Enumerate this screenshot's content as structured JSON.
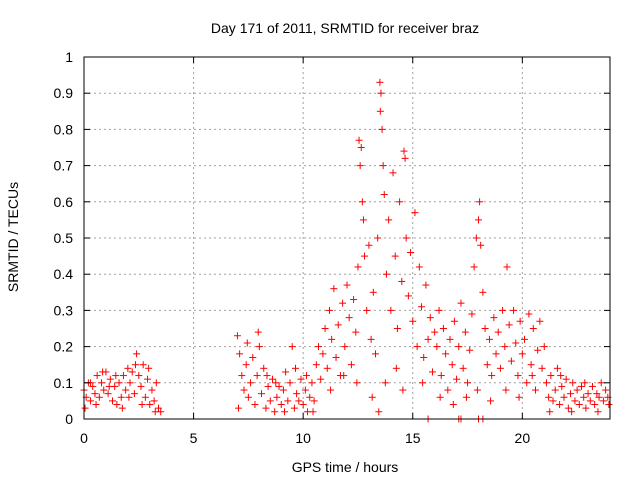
{
  "chart_data": {
    "type": "scatter",
    "title": "Day 171 of 2011, SRMTID for receiver braz",
    "xlabel": "GPS time / hours",
    "ylabel": "SRMTID / TECUs",
    "xlim": [
      0,
      24
    ],
    "ylim": [
      0,
      1
    ],
    "xticks": [
      0,
      5,
      10,
      15,
      20
    ],
    "yticks": [
      0,
      0.1,
      0.2,
      0.3,
      0.4,
      0.5,
      0.6,
      0.7,
      0.8,
      0.9,
      1
    ],
    "ytick_labels": [
      "0",
      "0.1",
      "0.2",
      "0.3",
      "0.4",
      "0.5",
      "0.6",
      "0.7",
      "0.8",
      "0.9",
      "1"
    ],
    "grid": true,
    "marker": "+",
    "color": "#ff0000",
    "points": [
      [
        0.0,
        0.08
      ],
      [
        0.1,
        0.06
      ],
      [
        0.2,
        0.1
      ],
      [
        0.3,
        0.05
      ],
      [
        0.4,
        0.09
      ],
      [
        0.5,
        0.07
      ],
      [
        0.6,
        0.12
      ],
      [
        0.7,
        0.06
      ],
      [
        0.8,
        0.1
      ],
      [
        0.9,
        0.08
      ],
      [
        1.0,
        0.13
      ],
      [
        1.1,
        0.07
      ],
      [
        1.2,
        0.11
      ],
      [
        1.3,
        0.05
      ],
      [
        1.4,
        0.09
      ],
      [
        1.5,
        0.04
      ],
      [
        1.6,
        0.1
      ],
      [
        1.7,
        0.06
      ],
      [
        1.8,
        0.12
      ],
      [
        1.9,
        0.08
      ],
      [
        2.0,
        0.14
      ],
      [
        2.1,
        0.1
      ],
      [
        2.2,
        0.13
      ],
      [
        2.3,
        0.07
      ],
      [
        2.4,
        0.18
      ],
      [
        2.5,
        0.12
      ],
      [
        2.6,
        0.09
      ],
      [
        2.7,
        0.15
      ],
      [
        2.8,
        0.06
      ],
      [
        2.9,
        0.11
      ],
      [
        3.0,
        0.04
      ],
      [
        3.1,
        0.08
      ],
      [
        3.2,
        0.05
      ],
      [
        3.3,
        0.1
      ],
      [
        3.4,
        0.03
      ],
      [
        3.5,
        0.02
      ],
      [
        0.05,
        0.03
      ],
      [
        0.3,
        0.1
      ],
      [
        0.55,
        0.04
      ],
      [
        0.85,
        0.13
      ],
      [
        1.15,
        0.09
      ],
      [
        1.45,
        0.12
      ],
      [
        1.75,
        0.03
      ],
      [
        2.05,
        0.06
      ],
      [
        2.35,
        0.15
      ],
      [
        2.65,
        0.04
      ],
      [
        2.95,
        0.14
      ],
      [
        3.25,
        0.02
      ],
      [
        7.0,
        0.23
      ],
      [
        7.1,
        0.18
      ],
      [
        7.2,
        0.12
      ],
      [
        7.3,
        0.08
      ],
      [
        7.4,
        0.15
      ],
      [
        7.5,
        0.06
      ],
      [
        7.6,
        0.1
      ],
      [
        7.7,
        0.17
      ],
      [
        7.8,
        0.04
      ],
      [
        7.9,
        0.12
      ],
      [
        8.0,
        0.2
      ],
      [
        8.1,
        0.07
      ],
      [
        8.2,
        0.14
      ],
      [
        8.3,
        0.03
      ],
      [
        8.4,
        0.09
      ],
      [
        8.5,
        0.05
      ],
      [
        8.6,
        0.11
      ],
      [
        8.7,
        0.02
      ],
      [
        8.8,
        0.06
      ],
      [
        8.9,
        0.09
      ],
      [
        9.0,
        0.04
      ],
      [
        9.1,
        0.08
      ],
      [
        9.2,
        0.13
      ],
      [
        9.3,
        0.05
      ],
      [
        9.4,
        0.1
      ],
      [
        9.5,
        0.2
      ],
      [
        9.6,
        0.03
      ],
      [
        9.7,
        0.07
      ],
      [
        9.8,
        0.05
      ],
      [
        9.9,
        0.11
      ],
      [
        10.0,
        0.04
      ],
      [
        10.1,
        0.08
      ],
      [
        10.2,
        0.02
      ],
      [
        10.3,
        0.06
      ],
      [
        10.4,
        0.1
      ],
      [
        10.5,
        0.05
      ],
      [
        7.05,
        0.03
      ],
      [
        7.45,
        0.21
      ],
      [
        7.95,
        0.24
      ],
      [
        8.35,
        0.12
      ],
      [
        8.75,
        0.1
      ],
      [
        9.15,
        0.02
      ],
      [
        9.65,
        0.14
      ],
      [
        10.15,
        0.12
      ],
      [
        10.45,
        0.02
      ],
      [
        10.6,
        0.15
      ],
      [
        10.7,
        0.2
      ],
      [
        10.8,
        0.11
      ],
      [
        10.9,
        0.18
      ],
      [
        11.0,
        0.25
      ],
      [
        11.1,
        0.14
      ],
      [
        11.2,
        0.3
      ],
      [
        11.3,
        0.22
      ],
      [
        11.4,
        0.36
      ],
      [
        11.5,
        0.17
      ],
      [
        11.6,
        0.26
      ],
      [
        11.7,
        0.12
      ],
      [
        11.8,
        0.32
      ],
      [
        11.9,
        0.2
      ],
      [
        12.0,
        0.37
      ],
      [
        12.1,
        0.28
      ],
      [
        12.2,
        0.15
      ],
      [
        12.3,
        0.33
      ],
      [
        12.4,
        0.24
      ],
      [
        12.5,
        0.42
      ],
      [
        12.55,
        0.77
      ],
      [
        12.6,
        0.7
      ],
      [
        12.65,
        0.75
      ],
      [
        12.7,
        0.6
      ],
      [
        12.75,
        0.55
      ],
      [
        12.8,
        0.45
      ],
      [
        12.9,
        0.3
      ],
      [
        13.0,
        0.48
      ],
      [
        13.1,
        0.22
      ],
      [
        13.2,
        0.35
      ],
      [
        13.3,
        0.18
      ],
      [
        13.4,
        0.5
      ],
      [
        13.5,
        0.93
      ],
      [
        13.52,
        0.85
      ],
      [
        13.55,
        0.9
      ],
      [
        13.6,
        0.8
      ],
      [
        13.65,
        0.7
      ],
      [
        13.7,
        0.62
      ],
      [
        13.8,
        0.4
      ],
      [
        13.9,
        0.55
      ],
      [
        14.0,
        0.3
      ],
      [
        14.1,
        0.68
      ],
      [
        14.2,
        0.45
      ],
      [
        14.3,
        0.25
      ],
      [
        14.4,
        0.6
      ],
      [
        14.5,
        0.38
      ],
      [
        14.6,
        0.74
      ],
      [
        14.65,
        0.72
      ],
      [
        14.7,
        0.5
      ],
      [
        14.8,
        0.34
      ],
      [
        14.9,
        0.46
      ],
      [
        15.0,
        0.27
      ],
      [
        15.1,
        0.57
      ],
      [
        15.2,
        0.2
      ],
      [
        15.3,
        0.42
      ],
      [
        15.4,
        0.31
      ],
      [
        15.5,
        0.17
      ],
      [
        15.6,
        0.37
      ],
      [
        15.7,
        0.22
      ],
      [
        15.8,
        0.28
      ],
      [
        15.9,
        0.13
      ],
      [
        16.0,
        0.24
      ],
      [
        16.1,
        0.2
      ],
      [
        16.2,
        0.3
      ],
      [
        16.3,
        0.12
      ],
      [
        16.4,
        0.25
      ],
      [
        16.5,
        0.18
      ],
      [
        16.6,
        0.08
      ],
      [
        16.7,
        0.22
      ],
      [
        16.8,
        0.15
      ],
      [
        16.9,
        0.27
      ],
      [
        17.0,
        0.11
      ],
      [
        17.1,
        0.2
      ],
      [
        17.2,
        0.32
      ],
      [
        17.3,
        0.14
      ],
      [
        17.4,
        0.24
      ],
      [
        17.5,
        0.1
      ],
      [
        17.6,
        0.19
      ],
      [
        17.7,
        0.29
      ],
      [
        17.8,
        0.42
      ],
      [
        17.9,
        0.5
      ],
      [
        18.0,
        0.55
      ],
      [
        18.05,
        0.6
      ],
      [
        18.1,
        0.48
      ],
      [
        18.2,
        0.35
      ],
      [
        18.3,
        0.25
      ],
      [
        18.4,
        0.15
      ],
      [
        18.5,
        0.22
      ],
      [
        18.6,
        0.12
      ],
      [
        18.7,
        0.28
      ],
      [
        18.8,
        0.18
      ],
      [
        18.9,
        0.24
      ],
      [
        19.0,
        0.14
      ],
      [
        19.1,
        0.3
      ],
      [
        19.2,
        0.2
      ],
      [
        19.3,
        0.42
      ],
      [
        19.4,
        0.26
      ],
      [
        19.5,
        0.16
      ],
      [
        19.6,
        0.3
      ],
      [
        19.7,
        0.21
      ],
      [
        19.8,
        0.12
      ],
      [
        19.9,
        0.27
      ],
      [
        20.0,
        0.18
      ],
      [
        20.1,
        0.22
      ],
      [
        20.2,
        0.1
      ],
      [
        20.3,
        0.29
      ],
      [
        20.4,
        0.15
      ],
      [
        20.5,
        0.25
      ],
      [
        20.6,
        0.08
      ],
      [
        20.7,
        0.19
      ],
      [
        20.8,
        0.27
      ],
      [
        20.9,
        0.14
      ],
      [
        21.0,
        0.2
      ],
      [
        11.25,
        0.08
      ],
      [
        11.85,
        0.12
      ],
      [
        12.45,
        0.1
      ],
      [
        13.15,
        0.06
      ],
      [
        13.45,
        0.02
      ],
      [
        13.75,
        0.1
      ],
      [
        14.25,
        0.14
      ],
      [
        14.55,
        0.08
      ],
      [
        15.45,
        0.1
      ],
      [
        16.25,
        0.06
      ],
      [
        16.85,
        0.04
      ],
      [
        17.45,
        0.06
      ],
      [
        17.95,
        0.08
      ],
      [
        18.55,
        0.05
      ],
      [
        19.25,
        0.08
      ],
      [
        19.85,
        0.06
      ],
      [
        20.45,
        0.12
      ],
      [
        15.7,
        0.0
      ],
      [
        17.1,
        0.0
      ],
      [
        17.2,
        0.0
      ],
      [
        18.0,
        0.0
      ],
      [
        18.2,
        0.0
      ],
      [
        21.1,
        0.1
      ],
      [
        21.2,
        0.06
      ],
      [
        21.3,
        0.12
      ],
      [
        21.4,
        0.05
      ],
      [
        21.5,
        0.08
      ],
      [
        21.6,
        0.14
      ],
      [
        21.7,
        0.04
      ],
      [
        21.8,
        0.09
      ],
      [
        21.9,
        0.06
      ],
      [
        22.0,
        0.11
      ],
      [
        22.1,
        0.03
      ],
      [
        22.2,
        0.07
      ],
      [
        22.3,
        0.1
      ],
      [
        22.4,
        0.05
      ],
      [
        22.5,
        0.08
      ],
      [
        22.6,
        0.04
      ],
      [
        22.7,
        0.09
      ],
      [
        22.8,
        0.06
      ],
      [
        22.9,
        0.03
      ],
      [
        23.0,
        0.07
      ],
      [
        23.1,
        0.05
      ],
      [
        23.2,
        0.09
      ],
      [
        23.3,
        0.04
      ],
      [
        23.4,
        0.07
      ],
      [
        23.5,
        0.06
      ],
      [
        23.6,
        0.1
      ],
      [
        23.7,
        0.05
      ],
      [
        23.8,
        0.08
      ],
      [
        23.9,
        0.06
      ],
      [
        21.25,
        0.02
      ],
      [
        21.75,
        0.12
      ],
      [
        22.25,
        0.02
      ],
      [
        22.85,
        0.1
      ],
      [
        23.45,
        0.02
      ],
      [
        23.95,
        0.04
      ]
    ]
  }
}
